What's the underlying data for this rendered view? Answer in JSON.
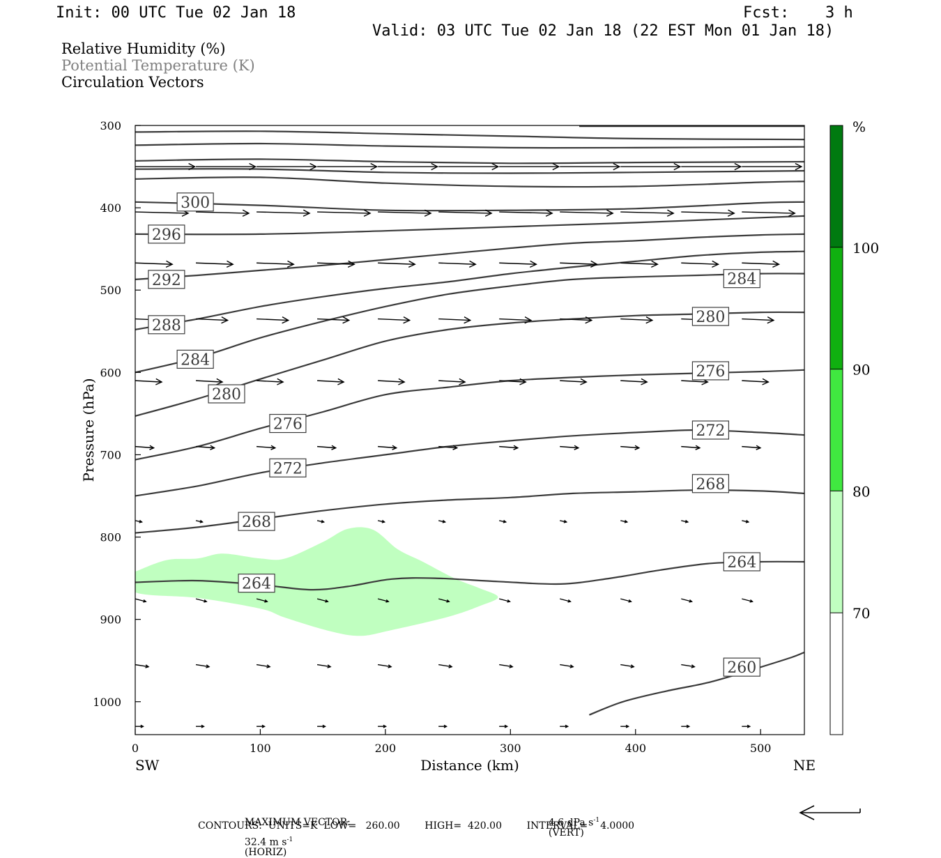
{
  "header": {
    "init": "Init: 00 UTC Tue 02 Jan 18",
    "fcst_label": "Fcst:",
    "fcst_value": "3 h",
    "valid": "Valid: 03 UTC Tue 02 Jan 18 (22 EST Mon 01 Jan 18)"
  },
  "legend": {
    "line1": "Relative Humidity (%)",
    "line2": "Potential Temperature (K)",
    "line3": "Circulation Vectors",
    "line2_color": "#808080"
  },
  "footer": {
    "max_vector_label": "MAXIMUM VECTOR:",
    "horiz_value": "32.4 m s",
    "horiz_sup": "-1",
    "horiz_tag": "(HORIZ)",
    "vert_value": "4.6 dPa s",
    "vert_sup": "-1",
    "vert_tag": "(VERT)",
    "contours": "CONTOURS:  UNITS=K  LOW=   260.00        HIGH=  420.00        INTERVAL=    4.0000"
  },
  "chart_data": {
    "type": "cross-section",
    "xlabel": "Distance (km)",
    "ylabel": "Pressure (hPa)",
    "xlim": [
      0,
      535
    ],
    "ylim": [
      1040,
      300
    ],
    "xticks": [
      0,
      100,
      200,
      300,
      400,
      500
    ],
    "yticks": [
      300,
      400,
      500,
      600,
      700,
      800,
      900,
      1000
    ],
    "x_end_labels": {
      "left": "SW",
      "right": "NE"
    },
    "grid": false,
    "colorbar": {
      "unit": "%",
      "ticks": [
        "70",
        "80",
        "90",
        "100"
      ],
      "bands": [
        {
          "from": 60,
          "to": 70,
          "color": "#ffffff"
        },
        {
          "from": 70,
          "to": 80,
          "color": "#c0ffc0"
        },
        {
          "from": 80,
          "to": 90,
          "color": "#40e840"
        },
        {
          "from": 90,
          "to": 100,
          "color": "#10b010"
        },
        {
          "from": 100,
          "to": 110,
          "color": "#007a10"
        }
      ]
    },
    "rh_shading": [
      {
        "level": "70-80",
        "color": "#c0ffc0",
        "points": [
          [
            0,
            842
          ],
          [
            25,
            828
          ],
          [
            50,
            826
          ],
          [
            70,
            820
          ],
          [
            100,
            826
          ],
          [
            120,
            826
          ],
          [
            150,
            806
          ],
          [
            170,
            790
          ],
          [
            190,
            791
          ],
          [
            210,
            815
          ],
          [
            230,
            830
          ],
          [
            255,
            850
          ],
          [
            275,
            862
          ],
          [
            290,
            873
          ],
          [
            275,
            884
          ],
          [
            250,
            897
          ],
          [
            205,
            913
          ],
          [
            180,
            920
          ],
          [
            155,
            914
          ],
          [
            120,
            898
          ],
          [
            100,
            887
          ],
          [
            50,
            874
          ],
          [
            0,
            867
          ]
        ]
      }
    ],
    "theta_contours": [
      {
        "value": 260,
        "points": [
          [
            363,
            1016
          ],
          [
            390,
            1000
          ],
          [
            425,
            987
          ],
          [
            460,
            976
          ],
          [
            500,
            958
          ],
          [
            525,
            946
          ],
          [
            535,
            940
          ]
        ]
      },
      {
        "value": 264,
        "points": [
          [
            0,
            855
          ],
          [
            50,
            853
          ],
          [
            100,
            858
          ],
          [
            140,
            864
          ],
          [
            170,
            860
          ],
          [
            205,
            851
          ],
          [
            240,
            850
          ],
          [
            290,
            854
          ],
          [
            340,
            857
          ],
          [
            380,
            850
          ],
          [
            420,
            840
          ],
          [
            460,
            832
          ],
          [
            500,
            830
          ],
          [
            535,
            830
          ]
        ]
      },
      {
        "value": 268,
        "points": [
          [
            0,
            795
          ],
          [
            50,
            788
          ],
          [
            100,
            778
          ],
          [
            150,
            768
          ],
          [
            200,
            760
          ],
          [
            250,
            755
          ],
          [
            300,
            752
          ],
          [
            350,
            747
          ],
          [
            400,
            745
          ],
          [
            450,
            743
          ],
          [
            500,
            744
          ],
          [
            535,
            747
          ]
        ]
      },
      {
        "value": 272,
        "points": [
          [
            0,
            750
          ],
          [
            50,
            738
          ],
          [
            100,
            722
          ],
          [
            150,
            710
          ],
          [
            200,
            700
          ],
          [
            250,
            690
          ],
          [
            300,
            683
          ],
          [
            350,
            677
          ],
          [
            400,
            673
          ],
          [
            450,
            670
          ],
          [
            500,
            673
          ],
          [
            535,
            676
          ]
        ]
      },
      {
        "value": 276,
        "points": [
          [
            0,
            706
          ],
          [
            50,
            690
          ],
          [
            100,
            668
          ],
          [
            150,
            648
          ],
          [
            200,
            627
          ],
          [
            250,
            618
          ],
          [
            300,
            610
          ],
          [
            350,
            606
          ],
          [
            400,
            603
          ],
          [
            450,
            601
          ],
          [
            500,
            599
          ],
          [
            535,
            597
          ]
        ]
      },
      {
        "value": 280,
        "points": [
          [
            0,
            653
          ],
          [
            50,
            632
          ],
          [
            100,
            608
          ],
          [
            150,
            585
          ],
          [
            200,
            562
          ],
          [
            250,
            548
          ],
          [
            300,
            540
          ],
          [
            350,
            535
          ],
          [
            400,
            531
          ],
          [
            450,
            529
          ],
          [
            500,
            527
          ],
          [
            535,
            527
          ]
        ]
      },
      {
        "value": 284,
        "points": [
          [
            0,
            600
          ],
          [
            50,
            582
          ],
          [
            100,
            558
          ],
          [
            150,
            538
          ],
          [
            200,
            520
          ],
          [
            250,
            505
          ],
          [
            300,
            495
          ],
          [
            350,
            487
          ],
          [
            400,
            484
          ],
          [
            450,
            482
          ],
          [
            500,
            480
          ],
          [
            535,
            480
          ]
        ]
      },
      {
        "value": 288,
        "points": [
          [
            0,
            548
          ],
          [
            50,
            535
          ],
          [
            100,
            520
          ],
          [
            150,
            508
          ],
          [
            200,
            498
          ],
          [
            250,
            490
          ],
          [
            300,
            480
          ],
          [
            350,
            472
          ],
          [
            400,
            465
          ],
          [
            450,
            458
          ],
          [
            500,
            454
          ],
          [
            535,
            453
          ]
        ]
      },
      {
        "value": 292,
        "points": [
          [
            0,
            487
          ],
          [
            50,
            482
          ],
          [
            100,
            476
          ],
          [
            150,
            470
          ],
          [
            200,
            463
          ],
          [
            250,
            456
          ],
          [
            300,
            449
          ],
          [
            350,
            443
          ],
          [
            400,
            440
          ],
          [
            450,
            436
          ],
          [
            500,
            433
          ],
          [
            535,
            432
          ]
        ]
      },
      {
        "value": 296,
        "points": [
          [
            0,
            432
          ],
          [
            100,
            432
          ],
          [
            200,
            428
          ],
          [
            300,
            423
          ],
          [
            400,
            418
          ],
          [
            500,
            412
          ],
          [
            535,
            410
          ]
        ]
      },
      {
        "value": 300,
        "points": [
          [
            0,
            393
          ],
          [
            100,
            397
          ],
          [
            200,
            403
          ],
          [
            300,
            403
          ],
          [
            400,
            401
          ],
          [
            500,
            394
          ],
          [
            535,
            393
          ]
        ]
      },
      {
        "value": 304,
        "points": [
          [
            0,
            365
          ],
          [
            100,
            363
          ],
          [
            200,
            370
          ],
          [
            300,
            374
          ],
          [
            400,
            374
          ],
          [
            500,
            369
          ],
          [
            535,
            368
          ]
        ]
      },
      {
        "value": 308,
        "points": [
          [
            0,
            353
          ],
          [
            100,
            353
          ],
          [
            200,
            357
          ],
          [
            300,
            358
          ],
          [
            400,
            357
          ],
          [
            535,
            355
          ]
        ]
      },
      {
        "value": 312,
        "points": [
          [
            0,
            343
          ],
          [
            100,
            341
          ],
          [
            200,
            344
          ],
          [
            300,
            346
          ],
          [
            400,
            345
          ],
          [
            535,
            344
          ]
        ]
      },
      {
        "value": 316,
        "points": [
          [
            0,
            324
          ],
          [
            100,
            322
          ],
          [
            200,
            325
          ],
          [
            300,
            327
          ],
          [
            400,
            327
          ],
          [
            535,
            326
          ]
        ]
      },
      {
        "value": 320,
        "points": [
          [
            0,
            308
          ],
          [
            100,
            307
          ],
          [
            200,
            310
          ],
          [
            300,
            313
          ],
          [
            400,
            316
          ],
          [
            535,
            317
          ]
        ]
      },
      {
        "value": 324,
        "points": [
          [
            355,
            301
          ],
          [
            535,
            301
          ]
        ]
      }
    ],
    "contour_labels": [
      {
        "text": "300",
        "x": 48,
        "p": 393
      },
      {
        "text": "296",
        "x": 25,
        "p": 432
      },
      {
        "text": "292",
        "x": 25,
        "p": 487
      },
      {
        "text": "288",
        "x": 25,
        "p": 542
      },
      {
        "text": "284",
        "x": 48,
        "p": 584
      },
      {
        "text": "280",
        "x": 73,
        "p": 626
      },
      {
        "text": "276",
        "x": 122,
        "p": 662
      },
      {
        "text": "272",
        "x": 122,
        "p": 716
      },
      {
        "text": "268",
        "x": 97,
        "p": 781
      },
      {
        "text": "264",
        "x": 97,
        "p": 856
      },
      {
        "text": "284",
        "x": 485,
        "p": 486
      },
      {
        "text": "280",
        "x": 460,
        "p": 532
      },
      {
        "text": "276",
        "x": 460,
        "p": 598
      },
      {
        "text": "272",
        "x": 460,
        "p": 670
      },
      {
        "text": "268",
        "x": 460,
        "p": 735
      },
      {
        "text": "264",
        "x": 485,
        "p": 830
      },
      {
        "text": "260",
        "x": 485,
        "p": 958
      }
    ],
    "vectors": [
      {
        "p": 350,
        "start_x": 0,
        "step": 48.5,
        "n": 11,
        "du": 45,
        "dp": 0
      },
      {
        "p": 405,
        "start_x": 0,
        "step": 48.5,
        "n": 11,
        "du": 40,
        "dp": 2
      },
      {
        "p": 467,
        "start_x": 0,
        "step": 48.5,
        "n": 11,
        "du": 28,
        "dp": 2
      },
      {
        "p": 535,
        "start_x": 0,
        "step": 48.5,
        "n": 11,
        "du": 24,
        "dp": 2
      },
      {
        "p": 610,
        "start_x": 0,
        "step": 48.5,
        "n": 11,
        "du": 20,
        "dp": 2
      },
      {
        "p": 690,
        "start_x": 0,
        "step": 48.5,
        "n": 11,
        "du": 14,
        "dp": 2
      },
      {
        "p": 780,
        "start_x": 0,
        "step": 48.5,
        "n": 11,
        "du": 5,
        "dp": 2
      },
      {
        "p": 875,
        "start_x": 0,
        "step": 48.5,
        "n": 11,
        "du": 8,
        "dp": 4
      },
      {
        "p": 955,
        "start_x": 0,
        "step": 48.5,
        "n": 11,
        "du": 10,
        "dp": 3
      },
      {
        "p": 1030,
        "start_x": 0,
        "step": 48.5,
        "n": 11,
        "du": 6,
        "dp": 0
      }
    ],
    "reference_vector": {
      "du": 32.4,
      "dp": 0
    }
  }
}
